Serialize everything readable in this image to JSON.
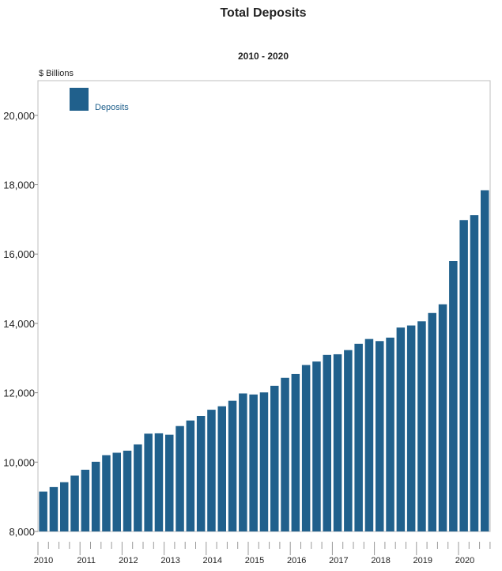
{
  "chart_data": {
    "type": "bar",
    "title": "Total Deposits",
    "subtitle": "2010 - 2020",
    "ylabel": "$ Billions",
    "xlabel": "",
    "ylim": [
      8000,
      21000
    ],
    "yticks": [
      8000,
      10000,
      12000,
      14000,
      16000,
      18000,
      20000
    ],
    "ytick_labels": [
      "8,000",
      "10,000",
      "12,000",
      "14,000",
      "16,000",
      "18,000",
      "20,000"
    ],
    "x_year_labels": [
      "2010",
      "2011",
      "2012",
      "2013",
      "2014",
      "2015",
      "2016",
      "2017",
      "2018",
      "2019",
      "2020"
    ],
    "bars_per_year": 4,
    "legend_position": "top-left",
    "grid": false,
    "series": [
      {
        "name": "Deposits",
        "color": "#20608c",
        "values": [
          9150,
          9280,
          9420,
          9610,
          9780,
          10010,
          10200,
          10270,
          10330,
          10510,
          10820,
          10830,
          10790,
          11040,
          11200,
          11330,
          11510,
          11610,
          11770,
          11980,
          11950,
          12010,
          12200,
          12430,
          12540,
          12800,
          12900,
          13090,
          13110,
          13230,
          13410,
          13550,
          13490,
          13590,
          13880,
          13940,
          14060,
          14300,
          14550,
          15800,
          16980,
          17120,
          17840
        ]
      }
    ]
  }
}
